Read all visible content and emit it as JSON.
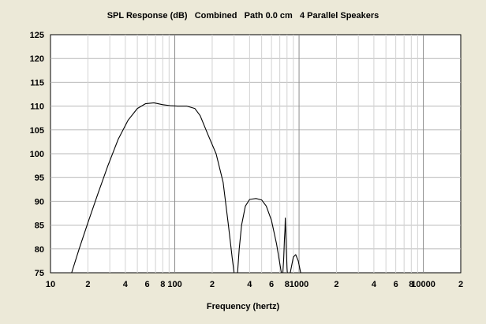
{
  "chart_data": {
    "type": "line",
    "title": "SPL Response (dB)   Combined   Path 0.0 cm   4 Parallel Speakers",
    "xlabel": "Frequency (hertz)",
    "ylabel": "",
    "x_scale": "log",
    "xlim": [
      10,
      20000
    ],
    "ylim": [
      75,
      125
    ],
    "grid": true,
    "x_tick_labels": [
      {
        "value": 10,
        "label": "10"
      },
      {
        "value": 20,
        "label": "2"
      },
      {
        "value": 40,
        "label": "4"
      },
      {
        "value": 60,
        "label": "6"
      },
      {
        "value": 80,
        "label": "8"
      },
      {
        "value": 100,
        "label": "100"
      },
      {
        "value": 200,
        "label": "2"
      },
      {
        "value": 400,
        "label": "4"
      },
      {
        "value": 600,
        "label": "6"
      },
      {
        "value": 800,
        "label": "8"
      },
      {
        "value": 1000,
        "label": "1000"
      },
      {
        "value": 2000,
        "label": "2"
      },
      {
        "value": 4000,
        "label": "4"
      },
      {
        "value": 6000,
        "label": "6"
      },
      {
        "value": 8000,
        "label": "8"
      },
      {
        "value": 10000,
        "label": "10000"
      },
      {
        "value": 20000,
        "label": "2"
      }
    ],
    "y_ticks": [
      75,
      80,
      85,
      90,
      95,
      100,
      105,
      110,
      115,
      120,
      125
    ],
    "series": [
      {
        "values": [
          [
            14.8,
            75
          ],
          [
            17,
            80
          ],
          [
            20,
            85.5
          ],
          [
            24,
            91.5
          ],
          [
            29,
            97.5
          ],
          [
            35,
            103
          ],
          [
            42,
            107
          ],
          [
            50,
            109.5
          ],
          [
            58,
            110.5
          ],
          [
            68,
            110.7
          ],
          [
            80,
            110.3
          ],
          [
            92,
            110.1
          ],
          [
            105,
            110
          ],
          [
            125,
            110
          ],
          [
            145,
            109.5
          ],
          [
            160,
            108
          ],
          [
            185,
            104
          ],
          [
            215,
            100
          ],
          [
            245,
            94
          ],
          [
            270,
            85
          ],
          [
            290,
            78
          ],
          [
            300,
            75
          ],
          null,
          [
            320,
            75
          ],
          [
            330,
            80
          ],
          [
            345,
            85
          ],
          [
            370,
            89
          ],
          [
            400,
            90.4
          ],
          [
            450,
            90.6
          ],
          [
            500,
            90.3
          ],
          [
            545,
            89
          ],
          [
            600,
            86
          ],
          [
            660,
            81
          ],
          [
            720,
            75
          ],
          null,
          [
            740,
            75
          ],
          [
            752,
            78
          ],
          [
            762,
            82
          ],
          [
            770,
            84
          ],
          [
            775,
            86.5
          ],
          [
            782,
            84
          ],
          [
            790,
            80
          ],
          [
            800,
            76
          ],
          [
            805,
            75
          ],
          null,
          [
            850,
            75
          ],
          [
            900,
            78.3
          ],
          [
            940,
            78.8
          ],
          [
            985,
            77.5
          ],
          [
            1030,
            75
          ]
        ]
      }
    ]
  }
}
